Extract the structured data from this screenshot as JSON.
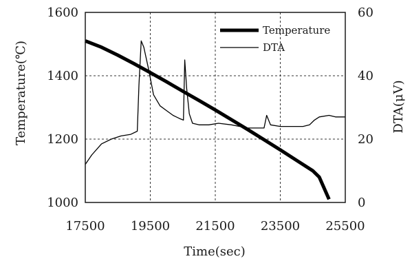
{
  "chart_data": {
    "type": "line",
    "xlabel": "Time(sec)",
    "ylabel_left": "Temperature(℃)",
    "ylabel_right": "DTA(μV)",
    "xlim": [
      17500,
      25500
    ],
    "ylim_left": [
      1000,
      1600
    ],
    "ylim_right": [
      0,
      60
    ],
    "x_ticks": [
      17500,
      19500,
      21500,
      23500,
      25500
    ],
    "y_ticks_left": [
      1000,
      1200,
      1400,
      1600
    ],
    "y_ticks_right": [
      0,
      20,
      40,
      60
    ],
    "grid": "dashed",
    "legend_position": "top-right",
    "series": [
      {
        "name": "Temperature",
        "axis": "left",
        "style": "thick",
        "x": [
          17500,
          18000,
          18500,
          19000,
          19500,
          20000,
          20500,
          21000,
          21500,
          22000,
          22500,
          23000,
          23500,
          24000,
          24500,
          24700,
          25000
        ],
        "y": [
          1510,
          1490,
          1465,
          1438,
          1410,
          1381,
          1351,
          1322,
          1292,
          1261,
          1230,
          1198,
          1166,
          1133,
          1100,
          1080,
          1010
        ]
      },
      {
        "name": "DTA",
        "axis": "right",
        "style": "thin",
        "x": [
          17500,
          17700,
          18000,
          18300,
          18600,
          18900,
          19100,
          19150,
          19220,
          19300,
          19450,
          19600,
          19800,
          20000,
          20200,
          20400,
          20520,
          20560,
          20620,
          20700,
          20800,
          21000,
          21300,
          21600,
          22000,
          22500,
          22900,
          23000,
          23080,
          23200,
          23500,
          24000,
          24200,
          24400,
          24550,
          24700,
          25000,
          25200,
          25500
        ],
        "y": [
          12,
          15,
          18.5,
          20,
          21,
          21.5,
          22.5,
          37,
          51,
          49,
          42,
          34,
          30.5,
          29,
          27.5,
          26.5,
          26,
          45,
          36,
          28,
          25,
          24.5,
          24.5,
          25,
          24.5,
          23.5,
          23.5,
          23.5,
          27.5,
          24.5,
          24,
          24,
          24,
          24.5,
          26,
          27,
          27.5,
          27,
          27
        ]
      }
    ]
  }
}
